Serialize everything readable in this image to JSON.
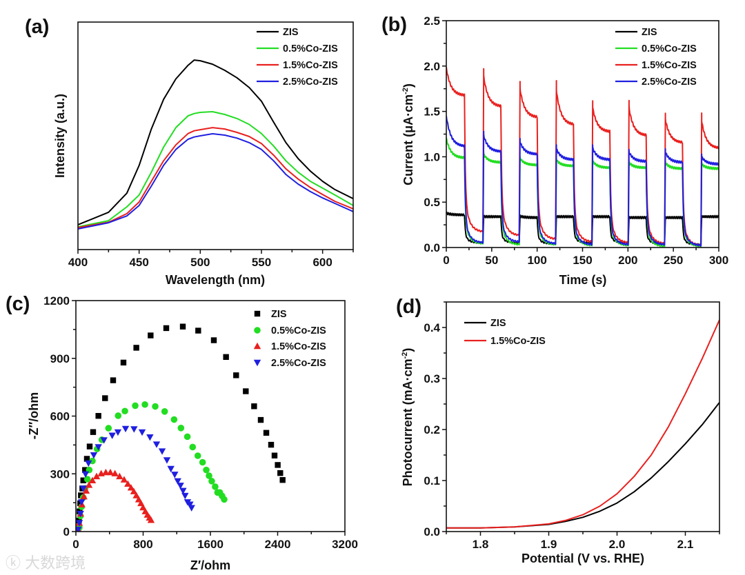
{
  "watermark": "大数跨境",
  "chart_data": [
    {
      "panel": "(a)",
      "type": "line",
      "xlabel": "Wavelength (nm)",
      "ylabel": "Intensity (a.u.)",
      "ylabel_sup": "",
      "xlim": [
        400,
        625
      ],
      "ylim": [
        0,
        100
      ],
      "xticks": [
        400,
        450,
        500,
        550,
        600
      ],
      "xminor": 25,
      "yticks": [],
      "yminor": 0,
      "legend_position": "top-right",
      "legend_style": "line",
      "x": [
        400,
        425,
        440,
        450,
        460,
        470,
        480,
        490,
        495,
        500,
        510,
        520,
        530,
        540,
        550,
        560,
        570,
        580,
        590,
        600,
        610,
        625
      ],
      "series": [
        {
          "name": "ZIS",
          "color": "#000000",
          "values": [
            10.9,
            16.4,
            24.8,
            37,
            53,
            66,
            75,
            81,
            83.3,
            83,
            81.5,
            78.8,
            75.5,
            71.2,
            65.2,
            56,
            47,
            40,
            34.5,
            30,
            26.4,
            22.4
          ]
        },
        {
          "name": "0.5%Co-ZIS",
          "color": "#22dd22",
          "values": [
            10,
            12.7,
            18.8,
            24,
            34,
            45,
            53.6,
            58.8,
            59.8,
            60.3,
            60.6,
            59.4,
            57.6,
            55,
            51,
            45.5,
            39,
            34,
            30,
            27,
            24,
            19.4
          ]
        },
        {
          "name": "1.5%Co-ZIS",
          "color": "#e8201e",
          "values": [
            9.7,
            12,
            15.8,
            20.9,
            30,
            39,
            46,
            51,
            52.2,
            52.7,
            53.6,
            53,
            51.5,
            49.7,
            46.6,
            41.5,
            35.5,
            31,
            27.3,
            24.2,
            21.2,
            17.9
          ]
        },
        {
          "name": "2.5%Co-ZIS",
          "color": "#1f1fe0",
          "values": [
            9.1,
            11.8,
            14.8,
            19.4,
            27.9,
            37,
            44,
            48.5,
            49.5,
            50,
            50.9,
            50.3,
            49,
            47,
            44,
            39,
            33,
            28.8,
            25.5,
            22.7,
            20.3,
            16.7
          ]
        }
      ]
    },
    {
      "panel": "(b)",
      "type": "line",
      "xlabel": "Time (s)",
      "ylabel": "Current (μA·cm",
      "ylabel_sup": "-2",
      "ylabel_end": ")",
      "xlim": [
        0,
        300
      ],
      "ylim": [
        0,
        2.5
      ],
      "xticks": [
        0,
        50,
        100,
        150,
        200,
        250,
        300
      ],
      "xminor": 25,
      "yticks": [
        0.0,
        0.5,
        1.0,
        1.5,
        2.0,
        2.5
      ],
      "yminor": 0.25,
      "ytick_decimals": 1,
      "legend_position": "top-right",
      "legend_style": "line",
      "light_period_s": 20,
      "series": [
        {
          "name": "ZIS",
          "color": "#000000",
          "on_peak": [
            0.38,
            0.34,
            0.35,
            0.34,
            0.34,
            0.33,
            0.33,
            0.34
          ],
          "on_end": [
            0.36,
            0.34,
            0.33,
            0.34,
            0.34,
            0.33,
            0.33,
            0.34
          ],
          "off_min": [
            0.05,
            0.05,
            0.04,
            0.05,
            0.05,
            0.04,
            0.03
          ]
        },
        {
          "name": "0.5%Co-ZIS",
          "color": "#22dd22",
          "on_peak": [
            1.2,
            1.05,
            1.0,
            0.98,
            0.97,
            0.95,
            0.95,
            0.93
          ],
          "on_end": [
            0.99,
            0.94,
            0.91,
            0.9,
            0.88,
            0.88,
            0.87,
            0.87
          ],
          "off_min": [
            0.04,
            0.03,
            0.03,
            0.02,
            0.02,
            0.01,
            0.01
          ]
        },
        {
          "name": "1.5%Co-ZIS",
          "color": "#e8201e",
          "on_peak": [
            1.98,
            1.97,
            1.83,
            1.83,
            1.61,
            1.62,
            1.48,
            1.47
          ],
          "on_end": [
            1.68,
            1.56,
            1.44,
            1.36,
            1.28,
            1.24,
            1.16,
            1.1
          ],
          "off_min": [
            0.17,
            0.13,
            0.09,
            0.06,
            0.05,
            0.04,
            0.02
          ]
        },
        {
          "name": "2.5%Co-ZIS",
          "color": "#1f1fe0",
          "on_peak": [
            1.45,
            1.28,
            1.2,
            1.12,
            1.13,
            1.08,
            1.08,
            1.02
          ],
          "on_end": [
            1.12,
            1.06,
            1.03,
            0.97,
            0.97,
            0.95,
            0.94,
            0.92
          ],
          "off_min": [
            0.05,
            0.06,
            0.04,
            0.03,
            0.03,
            0.03,
            0.02
          ]
        }
      ]
    },
    {
      "panel": "(c)",
      "type": "scatter",
      "xlabel": "Z′/ohm",
      "ylabel": "-Z′′/ohm",
      "ylabel_sup": "",
      "xlim": [
        0,
        3200
      ],
      "ylim": [
        0,
        1200
      ],
      "xticks": [
        0,
        800,
        1600,
        2400,
        3200
      ],
      "xminor": 400,
      "yticks": [
        0,
        300,
        600,
        900,
        1200
      ],
      "yminor": 150,
      "legend_position": "top-right",
      "legend_style": "marker",
      "series": [
        {
          "name": "ZIS",
          "color": "#000000",
          "marker": "square",
          "points": [
            [
              27,
              10
            ],
            [
              36,
              57
            ],
            [
              44,
              105
            ],
            [
              52,
              147
            ],
            [
              60,
              188
            ],
            [
              77,
              224
            ],
            [
              88,
              266
            ],
            [
              109,
              320
            ],
            [
              131,
              378
            ],
            [
              164,
              442
            ],
            [
              205,
              517
            ],
            [
              268,
              601
            ],
            [
              347,
              693
            ],
            [
              443,
              786
            ],
            [
              566,
              878
            ],
            [
              719,
              955
            ],
            [
              889,
              1019
            ],
            [
              1075,
              1057
            ],
            [
              1272,
              1065
            ],
            [
              1455,
              1044
            ],
            [
              1641,
              994
            ],
            [
              1786,
              907
            ],
            [
              1906,
              812
            ],
            [
              2021,
              729
            ],
            [
              2120,
              651
            ],
            [
              2199,
              580
            ],
            [
              2265,
              513
            ],
            [
              2322,
              451
            ],
            [
              2363,
              395
            ],
            [
              2401,
              346
            ],
            [
              2431,
              304
            ],
            [
              2459,
              268
            ]
          ]
        },
        {
          "name": "0.5%Co-ZIS",
          "color": "#22dd22",
          "marker": "circle",
          "points": [
            [
              41,
              21
            ],
            [
              55,
              81
            ],
            [
              68,
              129
            ],
            [
              88,
              177
            ],
            [
              109,
              224
            ],
            [
              137,
              272
            ],
            [
              159,
              320
            ],
            [
              197,
              367
            ],
            [
              252,
              429
            ],
            [
              309,
              477
            ],
            [
              388,
              537
            ],
            [
              503,
              602
            ],
            [
              583,
              626
            ],
            [
              706,
              654
            ],
            [
              821,
              660
            ],
            [
              944,
              650
            ],
            [
              1056,
              624
            ],
            [
              1168,
              582
            ],
            [
              1250,
              538
            ],
            [
              1326,
              493
            ],
            [
              1389,
              439
            ],
            [
              1450,
              394
            ],
            [
              1507,
              360
            ],
            [
              1551,
              320
            ],
            [
              1584,
              290
            ],
            [
              1616,
              262
            ],
            [
              1657,
              233
            ],
            [
              1685,
              203
            ],
            [
              1712,
              203
            ],
            [
              1739,
              185
            ],
            [
              1764,
              167
            ]
          ]
        },
        {
          "name": "1.5%Co-ZIS",
          "color": "#e8201e",
          "marker": "triangle-up",
          "points": [
            [
              27,
              10
            ],
            [
              41,
              45
            ],
            [
              55,
              93
            ],
            [
              71,
              141
            ],
            [
              96,
              182
            ],
            [
              123,
              212
            ],
            [
              156,
              242
            ],
            [
              197,
              266
            ],
            [
              246,
              287
            ],
            [
              301,
              302
            ],
            [
              356,
              308
            ],
            [
              410,
              308
            ],
            [
              465,
              302
            ],
            [
              520,
              287
            ],
            [
              574,
              270
            ],
            [
              618,
              248
            ],
            [
              656,
              228
            ],
            [
              689,
              209
            ],
            [
              719,
              188
            ],
            [
              747,
              167
            ],
            [
              774,
              147
            ],
            [
              799,
              125
            ],
            [
              826,
              105
            ],
            [
              851,
              87
            ],
            [
              875,
              72
            ],
            [
              894,
              60
            ]
          ]
        },
        {
          "name": "2.5%Co-ZIS",
          "color": "#1f1fe0",
          "marker": "triangle-down",
          "points": [
            [
              27,
              10
            ],
            [
              41,
              45
            ],
            [
              55,
              93
            ],
            [
              68,
              153
            ],
            [
              88,
              224
            ],
            [
              115,
              298
            ],
            [
              150,
              355
            ],
            [
              213,
              397
            ],
            [
              268,
              439
            ],
            [
              334,
              475
            ],
            [
              432,
              499
            ],
            [
              500,
              516
            ],
            [
              591,
              534
            ],
            [
              692,
              532
            ],
            [
              788,
              516
            ],
            [
              881,
              490
            ],
            [
              960,
              453
            ],
            [
              1026,
              417
            ],
            [
              1083,
              371
            ],
            [
              1130,
              326
            ],
            [
              1176,
              296
            ],
            [
              1212,
              262
            ],
            [
              1244,
              239
            ],
            [
              1275,
              212
            ],
            [
              1299,
              186
            ],
            [
              1329,
              153
            ],
            [
              1357,
              141
            ],
            [
              1376,
              123
            ]
          ]
        }
      ]
    },
    {
      "panel": "(d)",
      "type": "line",
      "xlabel": "Potential (V vs. RHE)",
      "ylabel": "Photocurrent (mA·cm",
      "ylabel_sup": "-2",
      "ylabel_end": ")",
      "xlim": [
        1.75,
        2.15
      ],
      "ylim": [
        0,
        0.45
      ],
      "xticks": [
        1.8,
        1.9,
        2.0,
        2.1
      ],
      "xminor": 0.05,
      "yticks": [
        0.0,
        0.1,
        0.2,
        0.3,
        0.4
      ],
      "yminor": 0.05,
      "ytick_decimals": 1,
      "xtick_decimals": 1,
      "legend_position": "top-left",
      "legend_style": "line",
      "x": [
        1.75,
        1.8,
        1.85,
        1.9,
        1.925,
        1.95,
        1.975,
        2.0,
        2.025,
        2.05,
        2.075,
        2.1,
        2.125,
        2.15
      ],
      "series": [
        {
          "name": "ZIS",
          "color": "#000000",
          "values": [
            0.007,
            0.007,
            0.009,
            0.014,
            0.02,
            0.028,
            0.04,
            0.056,
            0.078,
            0.105,
            0.137,
            0.172,
            0.21,
            0.253
          ]
        },
        {
          "name": "1.5%Co-ZIS",
          "color": "#e8201e",
          "values": [
            0.007,
            0.007,
            0.009,
            0.015,
            0.022,
            0.033,
            0.05,
            0.074,
            0.108,
            0.15,
            0.205,
            0.27,
            0.34,
            0.415
          ]
        }
      ]
    }
  ]
}
